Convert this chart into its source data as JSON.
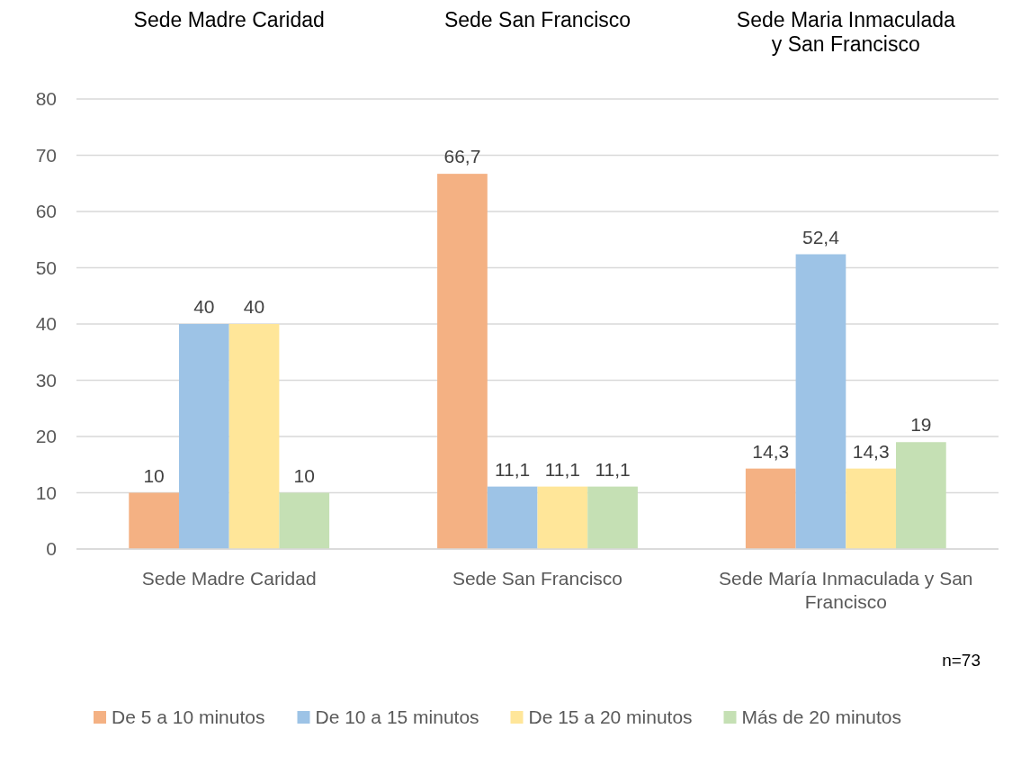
{
  "chart_data": {
    "type": "bar",
    "categories": [
      "Sede Madre Caridad",
      "Sede San Francisco",
      "Sede María Inmaculada y San Francisco"
    ],
    "series": [
      {
        "name": "De 5 a 10 minutos",
        "color": "#f4b183",
        "values": [
          10,
          66.7,
          14.3
        ],
        "value_labels": [
          "10",
          "66,7",
          "14,3"
        ]
      },
      {
        "name": "De 10 a 15 minutos",
        "color": "#9dc3e6",
        "values": [
          40,
          11.1,
          52.4
        ],
        "value_labels": [
          "40",
          "11,1",
          "52,4"
        ]
      },
      {
        "name": "De 15 a 20 minutos",
        "color": "#ffe699",
        "values": [
          40,
          11.1,
          14.3
        ],
        "value_labels": [
          "40",
          "11,1",
          "14,3"
        ]
      },
      {
        "name": "Más de 20 minutos",
        "color": "#c5e0b4",
        "values": [
          10,
          11.1,
          19
        ],
        "value_labels": [
          "10",
          "11,1",
          "19"
        ]
      }
    ],
    "ylim": [
      0,
      80
    ],
    "yticks": [
      0,
      10,
      20,
      30,
      40,
      50,
      60,
      70,
      80
    ],
    "grid": "y",
    "legend": "bottom",
    "annotations": [
      "Sede Madre Caridad",
      "Sede San Francisco",
      "Sede Maria Inmaculada y San Francisco",
      "n=73"
    ]
  }
}
